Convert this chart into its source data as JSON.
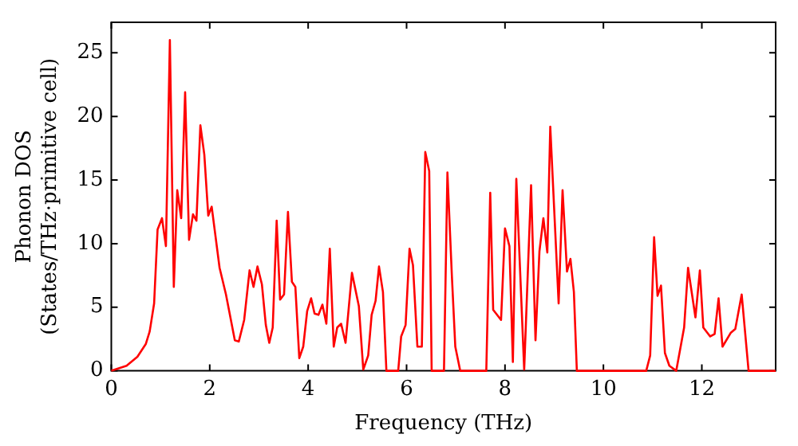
{
  "chart_data": {
    "type": "line",
    "xlabel": "Frequency (THz)",
    "ylabel": "Phonon DOS\n(States/THz·primitive cell)",
    "xlim": [
      0,
      13.5
    ],
    "ylim": [
      0,
      27.4
    ],
    "xticks": [
      0,
      2,
      4,
      6,
      8,
      10,
      12
    ],
    "yticks": [
      0,
      5,
      10,
      15,
      20,
      25
    ],
    "grid": false,
    "legend": false,
    "marker": "none",
    "line_style": "solid",
    "series": [
      {
        "color": "#ff0000",
        "x": [
          0,
          0.31,
          0.53,
          0.7,
          0.78,
          0.87,
          0.94,
          1.03,
          1.11,
          1.19,
          1.27,
          1.34,
          1.42,
          1.5,
          1.58,
          1.66,
          1.73,
          1.81,
          1.89,
          1.97,
          2.04,
          2.2,
          2.33,
          2.51,
          2.59,
          2.7,
          2.81,
          2.89,
          2.97,
          3.06,
          3.14,
          3.21,
          3.28,
          3.36,
          3.43,
          3.51,
          3.59,
          3.67,
          3.74,
          3.82,
          3.9,
          3.98,
          4.06,
          4.13,
          4.21,
          4.29,
          4.37,
          4.44,
          4.52,
          4.59,
          4.67,
          4.76,
          4.89,
          5.03,
          5.12,
          5.22,
          5.29,
          5.37,
          5.44,
          5.52,
          5.59,
          5.83,
          5.89,
          5.98,
          6.06,
          6.13,
          6.22,
          6.31,
          6.38,
          6.46,
          6.51,
          6.76,
          6.83,
          6.92,
          6.99,
          7.09,
          7.62,
          7.7,
          7.76,
          7.92,
          8.0,
          8.09,
          8.16,
          8.23,
          8.39,
          8.53,
          8.62,
          8.7,
          8.78,
          8.86,
          8.92,
          9.09,
          9.17,
          9.26,
          9.33,
          9.4,
          9.46,
          10.87,
          10.95,
          11.03,
          11.1,
          11.17,
          11.25,
          11.34,
          11.48,
          11.64,
          11.72,
          11.87,
          11.96,
          12.03,
          12.17,
          12.26,
          12.34,
          12.42,
          12.59,
          12.68,
          12.81,
          12.95,
          13.5
        ],
        "values": [
          0,
          0.4,
          1.1,
          2.1,
          3.1,
          5.3,
          11.1,
          12,
          9.8,
          26,
          6.6,
          14.2,
          12,
          21.9,
          10.3,
          12.3,
          11.8,
          19.3,
          17,
          12.2,
          12.9,
          8.1,
          6,
          2.4,
          2.3,
          4,
          7.9,
          6.6,
          8.2,
          6.8,
          3.6,
          2.2,
          3.4,
          11.8,
          5.6,
          6,
          12.5,
          7,
          6.6,
          1,
          1.9,
          4.7,
          5.7,
          4.5,
          4.4,
          5.2,
          3.7,
          9.6,
          1.9,
          3.4,
          3.7,
          2.2,
          7.7,
          5.1,
          0.1,
          1.2,
          4.4,
          5.5,
          8.2,
          6.2,
          0,
          0,
          2.7,
          3.6,
          9.6,
          8.3,
          1.9,
          1.9,
          17.2,
          15.7,
          0,
          0,
          15.6,
          7.5,
          1.9,
          0,
          0,
          14,
          4.8,
          4,
          11.2,
          9.8,
          0.7,
          15.1,
          0.1,
          14.6,
          2.4,
          9.4,
          12,
          9.3,
          19.2,
          5.3,
          14.2,
          7.8,
          8.8,
          6.2,
          0,
          0,
          1.2,
          10.5,
          5.9,
          6.7,
          1.4,
          0.4,
          0,
          3.4,
          8.1,
          4.2,
          7.9,
          3.4,
          2.7,
          2.9,
          5.7,
          1.9,
          3,
          3.3,
          6,
          0,
          0
        ]
      }
    ]
  }
}
